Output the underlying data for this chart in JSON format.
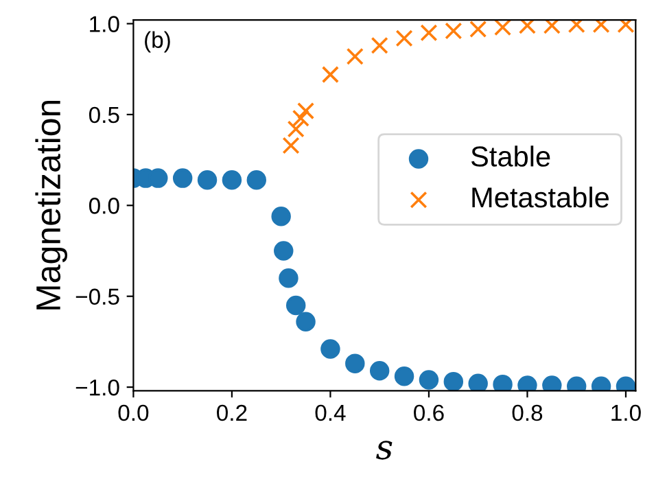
{
  "chart_data": {
    "type": "scatter",
    "xlabel": "s",
    "ylabel": "Magnetization",
    "annotations": [
      "(b)"
    ],
    "xlim": [
      0,
      1.02
    ],
    "ylim": [
      -1.02,
      1.02
    ],
    "xticks": [
      {
        "value": 0,
        "label": "0.0"
      },
      {
        "value": 0.2,
        "label": "0.2"
      },
      {
        "value": 0.4,
        "label": "0.4"
      },
      {
        "value": 0.6,
        "label": "0.6"
      },
      {
        "value": 0.8,
        "label": "0.8"
      },
      {
        "value": 1,
        "label": "1.0"
      }
    ],
    "yticks": [
      {
        "value": -1,
        "label": "−1.0"
      },
      {
        "value": -0.5,
        "label": "−0.5"
      },
      {
        "value": 0,
        "label": "0.0"
      },
      {
        "value": 0.5,
        "label": "0.5"
      },
      {
        "value": 1,
        "label": "1.0"
      }
    ],
    "legend": "right",
    "grid": false,
    "series": [
      {
        "name": "Stable",
        "color": "#1f77b4",
        "marker": "circle",
        "x": [
          0,
          0.025,
          0.05,
          0.1,
          0.15,
          0.2,
          0.25,
          0.3,
          0.305,
          0.315,
          0.33,
          0.35,
          0.4,
          0.45,
          0.5,
          0.55,
          0.6,
          0.65,
          0.7,
          0.75,
          0.8,
          0.85,
          0.9,
          0.95,
          1.0
        ],
        "values": [
          0.15,
          0.15,
          0.15,
          0.15,
          0.14,
          0.14,
          0.14,
          -0.06,
          -0.25,
          -0.4,
          -0.55,
          -0.64,
          -0.79,
          -0.87,
          -0.91,
          -0.94,
          -0.96,
          -0.97,
          -0.98,
          -0.985,
          -0.99,
          -0.99,
          -0.995,
          -0.995,
          -0.995
        ]
      },
      {
        "name": "Metastable",
        "color": "#ff7f0e",
        "marker": "cross",
        "x": [
          0.32,
          0.33,
          0.34,
          0.35,
          0.4,
          0.45,
          0.5,
          0.55,
          0.6,
          0.65,
          0.7,
          0.75,
          0.8,
          0.85,
          0.9,
          0.95,
          1.0
        ],
        "values": [
          0.33,
          0.42,
          0.48,
          0.52,
          0.72,
          0.82,
          0.88,
          0.92,
          0.95,
          0.96,
          0.97,
          0.98,
          0.99,
          0.99,
          0.995,
          0.995,
          0.995
        ]
      }
    ]
  }
}
